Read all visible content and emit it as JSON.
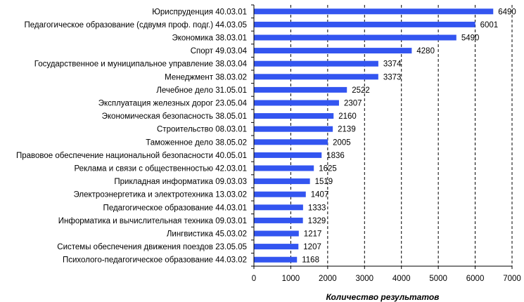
{
  "chart_data": {
    "type": "bar",
    "orientation": "horizontal",
    "title": "",
    "xlabel": "Количество  результатов",
    "ylabel": "",
    "xlim": [
      0,
      7000
    ],
    "ticks": [
      "0",
      "1000",
      "2000",
      "3000",
      "4000",
      "5000",
      "6000",
      "7000"
    ],
    "grid": "vertical-dashed",
    "legend": "none",
    "bar_color": "#3355f0",
    "categories": [
      "Юриспруденция 40.03.01",
      "Педагогическое образование (сдвумя проф. подг.) 44.03.05",
      "Экономика 38.03.01",
      "Спорт 49.03.04",
      "Государственное и муниципальное управление 38.03.04",
      "Менеджмент 38.03.02",
      "Лечебное дело 31.05.01",
      "Эксплуатация железных дорог 23.05.04",
      "Экономическая безопасность 38.05.01",
      "Строительство 08.03.01",
      "Таможенное дело 38.05.02",
      "Правовое обеспечение национальной безопасности 40.05.01",
      "Реклама и связи с общественностью 42.03.01",
      "Прикладная информатика 09.03.03",
      "Электроэнергетика и электротехника 13.03.02",
      "Педагогическое образование 44.03.01",
      "Информатика и вычислительная техника 09.03.01",
      "Лингвистика 45.03.02",
      "Системы обеспечения движения поездов 23.05.05",
      "Психолого-педагогическое образование  44.03.02"
    ],
    "values": [
      6490,
      6001,
      5490,
      4280,
      3374,
      3373,
      2522,
      2307,
      2160,
      2139,
      2005,
      1836,
      1625,
      1519,
      1407,
      1333,
      1329,
      1217,
      1207,
      1168
    ],
    "value_labels": [
      "6490",
      "6001",
      "5490",
      "4280",
      "3374",
      "3373",
      "2522",
      "2307",
      "2160",
      "2139",
      "2005",
      "1836",
      "1625",
      "1519",
      "1407",
      "1333",
      "1329",
      "1217",
      "1207",
      "1168"
    ]
  }
}
